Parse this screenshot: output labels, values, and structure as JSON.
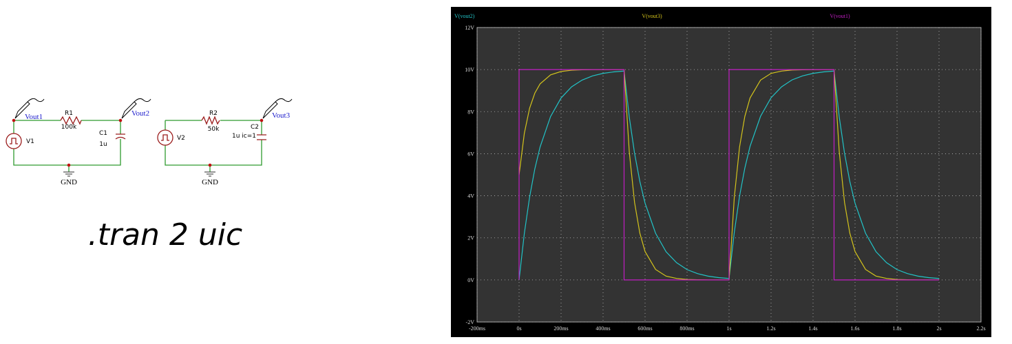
{
  "schematic": {
    "labels": [
      "Vout1",
      "R1",
      "100k",
      "Vout2",
      "C1",
      "1u",
      "V1",
      "GND",
      "V2",
      "R2",
      "50k",
      "Vout3",
      "C2",
      "1u ic=1",
      "GND"
    ],
    "directive": ".tran 2 uic"
  },
  "chart_data": {
    "type": "line",
    "x": [
      0,
      0.025,
      0.05,
      0.075,
      0.1,
      0.15,
      0.2,
      0.25,
      0.3,
      0.35,
      0.4,
      0.45,
      0.5,
      0.525,
      0.55,
      0.575,
      0.6,
      0.65,
      0.7,
      0.75,
      0.8,
      0.85,
      0.9,
      0.95,
      1.0,
      1.025,
      1.05,
      1.075,
      1.1,
      1.15,
      1.2,
      1.25,
      1.3,
      1.35,
      1.4,
      1.45,
      1.5,
      1.525,
      1.55,
      1.575,
      1.6,
      1.65,
      1.7,
      1.75,
      1.8,
      1.85,
      1.9,
      1.95,
      2.0
    ],
    "series": [
      {
        "name": "V(vout2)",
        "color": "#22c4c8",
        "values": [
          0,
          2.21,
          3.93,
          5.28,
          6.32,
          7.77,
          8.65,
          9.18,
          9.5,
          9.7,
          9.82,
          9.89,
          9.93,
          7.73,
          6.02,
          4.69,
          3.65,
          2.22,
          1.34,
          0.82,
          0.49,
          0.3,
          0.18,
          0.11,
          0.07,
          2.27,
          3.98,
          5.31,
          6.35,
          7.78,
          8.66,
          9.18,
          9.51,
          9.7,
          9.82,
          9.89,
          9.93,
          7.73,
          6.02,
          4.69,
          3.65,
          2.22,
          1.34,
          0.82,
          0.49,
          0.3,
          0.18,
          0.11,
          0.07
        ]
      },
      {
        "name": "V(vout3)",
        "color": "#d4c41c",
        "values": [
          5,
          6.97,
          8.16,
          8.88,
          9.32,
          9.75,
          9.91,
          9.97,
          9.99,
          10,
          10,
          10,
          10,
          6.07,
          3.68,
          2.23,
          1.35,
          0.5,
          0.18,
          0.07,
          0.02,
          0.01,
          0,
          0,
          0,
          3.93,
          6.32,
          7.77,
          8.65,
          9.5,
          9.82,
          9.93,
          9.98,
          9.99,
          10,
          10,
          10,
          6.07,
          3.68,
          2.23,
          1.35,
          0.5,
          0.18,
          0.07,
          0.02,
          0.01,
          0,
          0,
          0
        ]
      },
      {
        "name": "V(vout1)",
        "color": "#c21ec4",
        "x": [
          0,
          0,
          0.5,
          0.5,
          1,
          1,
          1.5,
          1.5,
          2
        ],
        "values": [
          0,
          10,
          10,
          0,
          0,
          10,
          10,
          0,
          0
        ]
      }
    ],
    "xlim": [
      -0.2,
      2.2
    ],
    "xticks": [
      {
        "value": -0.2,
        "label": "-200ms"
      },
      {
        "value": 0,
        "label": "0s"
      },
      {
        "value": 0.2,
        "label": "200ms"
      },
      {
        "value": 0.4,
        "label": "400ms"
      },
      {
        "value": 0.6,
        "label": "600ms"
      },
      {
        "value": 0.8,
        "label": "800ms"
      },
      {
        "value": 1,
        "label": "1s"
      },
      {
        "value": 1.2,
        "label": "1.2s"
      },
      {
        "value": 1.4,
        "label": "1.4s"
      },
      {
        "value": 1.6,
        "label": "1.6s"
      },
      {
        "value": 1.8,
        "label": "1.8s"
      },
      {
        "value": 2,
        "label": "2s"
      },
      {
        "value": 2.2,
        "label": "2.2s"
      }
    ],
    "ylim": [
      -2,
      12
    ],
    "yticks": [
      {
        "value": -2,
        "label": "-2V"
      },
      {
        "value": 0,
        "label": "0V"
      },
      {
        "value": 2,
        "label": "2V"
      },
      {
        "value": 4,
        "label": "4V"
      },
      {
        "value": 6,
        "label": "6V"
      },
      {
        "value": 8,
        "label": "8V"
      },
      {
        "value": 10,
        "label": "10V"
      },
      {
        "value": 12,
        "label": "12V"
      }
    ],
    "grid": true
  }
}
